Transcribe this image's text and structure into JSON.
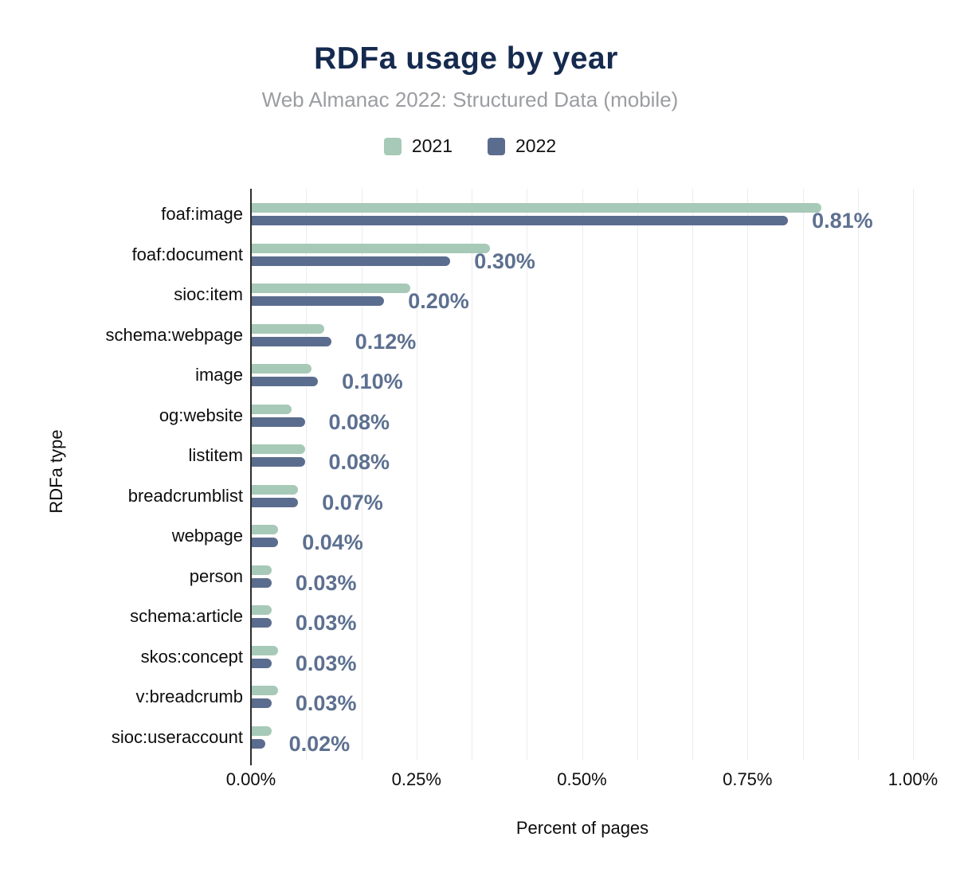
{
  "title": "RDFa usage by year",
  "subtitle": "Web Almanac 2022: Structured Data (mobile)",
  "legend": [
    {
      "label": "2021",
      "color": "#a7c9b7"
    },
    {
      "label": "2022",
      "color": "#5b6d8e"
    }
  ],
  "colors": {
    "title": "#152a4e",
    "subtitle": "#9b9da1",
    "series_2021": "#a7c9b7",
    "series_2022": "#5b6d8e",
    "value_label": "#5d7090",
    "gridline": "#ececee",
    "axis_line": "#2d2d2d"
  },
  "chart_data": {
    "type": "bar",
    "orientation": "horizontal",
    "title": "RDFa usage by year",
    "subtitle": "Web Almanac 2022: Structured Data (mobile)",
    "xlabel": "Percent of pages",
    "ylabel": "RDFa type",
    "xlim": [
      0,
      1.0
    ],
    "x_ticks": [
      "0.00%",
      "0.25%",
      "0.50%",
      "0.75%",
      "1.00%"
    ],
    "x_tick_values": [
      0,
      0.25,
      0.5,
      0.75,
      1.0
    ],
    "grid": "vertical, minor gridlines every 0.0833%",
    "legend_position": "top-center",
    "categories": [
      "foaf:image",
      "foaf:document",
      "sioc:item",
      "schema:webpage",
      "image",
      "og:website",
      "listitem",
      "breadcrumblist",
      "webpage",
      "person",
      "schema:article",
      "skos:concept",
      "v:breadcrumb",
      "sioc:useraccount"
    ],
    "series": [
      {
        "name": "2021",
        "color": "#a7c9b7",
        "values": [
          0.86,
          0.36,
          0.24,
          0.11,
          0.09,
          0.06,
          0.08,
          0.07,
          0.04,
          0.03,
          0.03,
          0.04,
          0.04,
          0.03
        ]
      },
      {
        "name": "2022",
        "color": "#5b6d8e",
        "values": [
          0.81,
          0.3,
          0.2,
          0.12,
          0.1,
          0.08,
          0.08,
          0.07,
          0.04,
          0.03,
          0.03,
          0.03,
          0.03,
          0.02
        ]
      }
    ],
    "data_labels": [
      "0.81%",
      "0.30%",
      "0.20%",
      "0.12%",
      "0.10%",
      "0.08%",
      "0.08%",
      "0.07%",
      "0.04%",
      "0.03%",
      "0.03%",
      "0.03%",
      "0.03%",
      "0.02%"
    ],
    "data_labels_series": "2022"
  }
}
